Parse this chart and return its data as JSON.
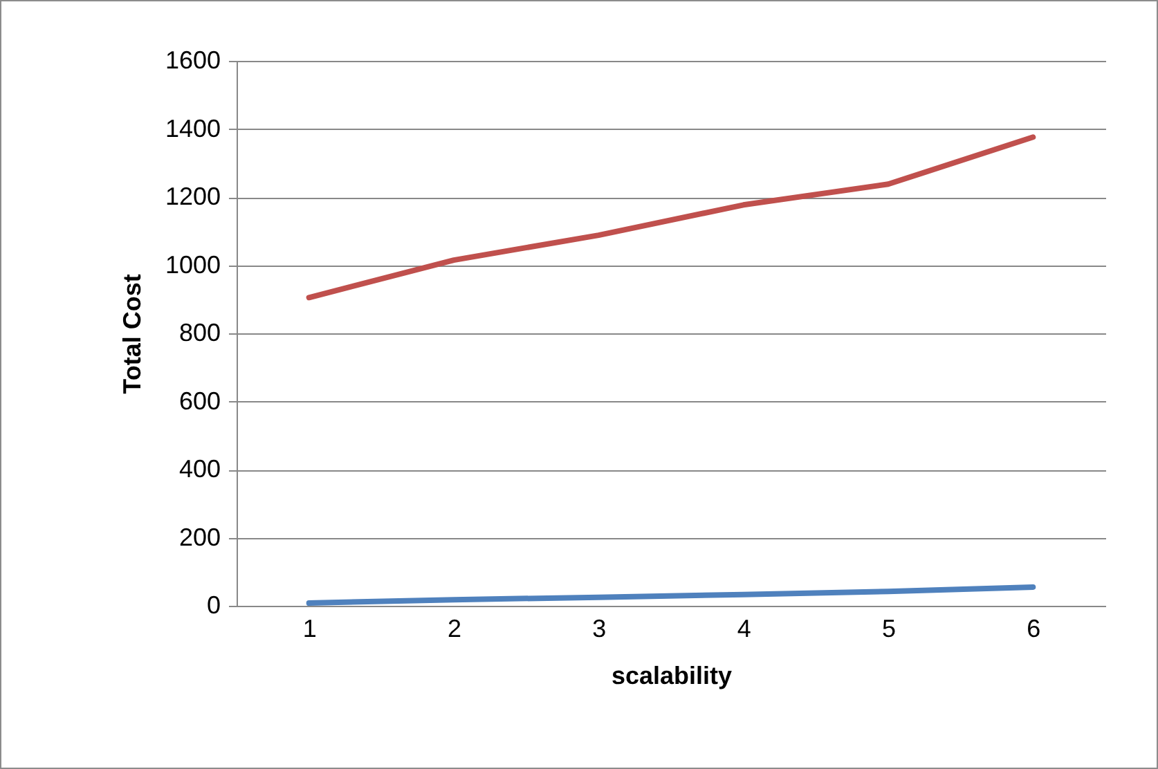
{
  "chart_data": {
    "type": "line",
    "xlabel": "scalability",
    "ylabel": "Total Cost",
    "categories": [
      "1",
      "2",
      "3",
      "4",
      "5",
      "6"
    ],
    "series": [
      {
        "color": "#4f81bd",
        "values": [
          8,
          18,
          25,
          33,
          42,
          55
        ]
      },
      {
        "color": "#c0504d",
        "values": [
          905,
          1015,
          1088,
          1177,
          1238,
          1376
        ]
      }
    ],
    "ylim": [
      0,
      1600
    ],
    "yticks": [
      0,
      200,
      400,
      600,
      800,
      1000,
      1200,
      1400,
      1600
    ],
    "grid": "y",
    "marker": "none",
    "line_style": "solid",
    "legend": false
  }
}
